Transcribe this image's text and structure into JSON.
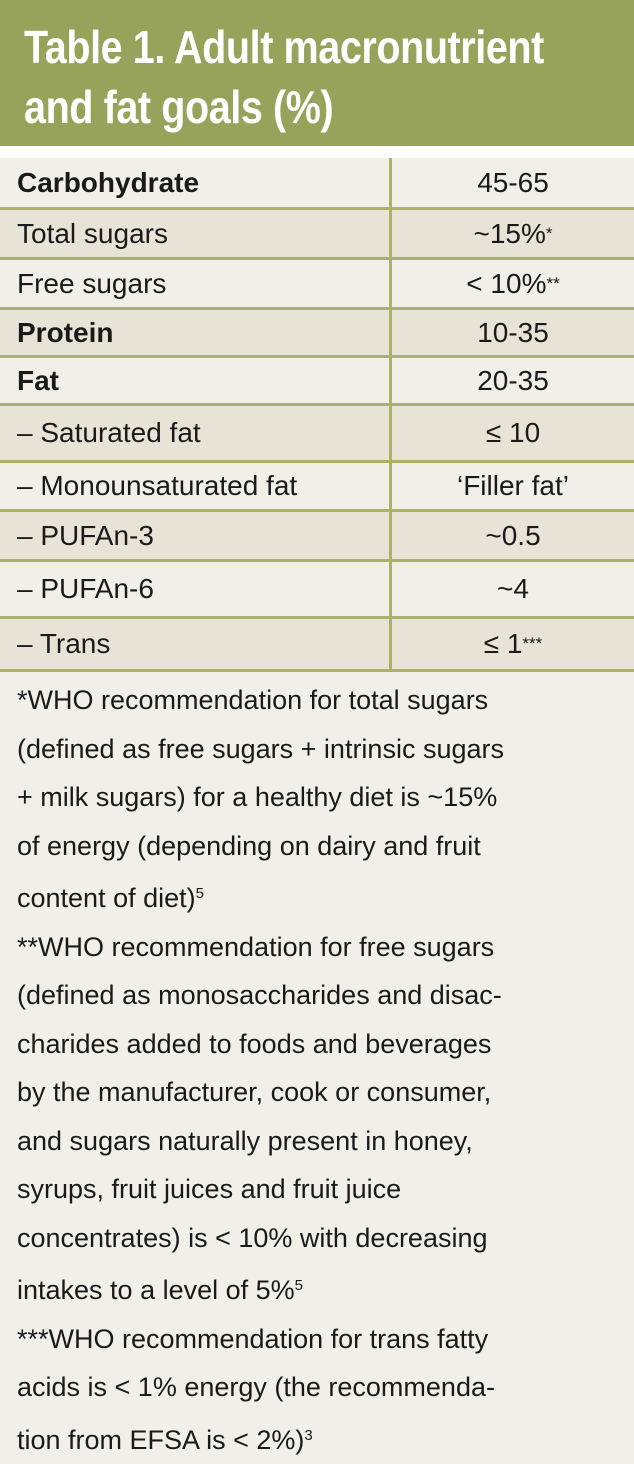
{
  "title": {
    "lines": [
      "Table 1. Adult macronutrient",
      "and fat goals (%)"
    ]
  },
  "colors": {
    "header": "#97a35b",
    "border": "#a8b26a",
    "row_light": "#f0efe8",
    "row_dark": "#e5e4d6"
  },
  "rows": [
    {
      "label": "Carbohydrate",
      "value": "45-65",
      "note": "",
      "bold": true
    },
    {
      "label": "Total sugars",
      "value": "~15%",
      "note": "*",
      "bold": false
    },
    {
      "label": "Free sugars",
      "value": "< 10%",
      "note": "**",
      "bold": false
    },
    {
      "label": "Protein",
      "value": "10-35",
      "note": "",
      "bold": true
    },
    {
      "label": "Fat",
      "value": "20-35",
      "note": "",
      "bold": true
    },
    {
      "label": "– Saturated fat",
      "value": "≤ 10",
      "note": "",
      "bold": false
    },
    {
      "label": "– Monounsaturated fat",
      "value": "‘Filler fat’",
      "note": "",
      "bold": false
    },
    {
      "label": "– PUFAn-3",
      "value": "~0.5",
      "note": "",
      "bold": false
    },
    {
      "label": "– PUFAn-6",
      "value": "~4",
      "note": "",
      "bold": false
    },
    {
      "label": "– Trans",
      "value": "≤ 1",
      "note": "***",
      "bold": false
    }
  ],
  "footnotes": [
    {
      "lines": [
        "*WHO recommendation for total sugars",
        "(defined as free sugars + intrinsic sugars",
        "+ milk sugars) for a healthy diet is ~15%",
        "of energy (depending on dairy and fruit",
        "content of diet)"
      ],
      "ref": "5"
    },
    {
      "lines": [
        "**WHO recommendation for free sugars",
        "(defined as monosaccharides and disac-",
        "charides added to foods and beverages",
        "by the manufacturer, cook or consumer,",
        "and sugars naturally present in honey,",
        "syrups, fruit juices and fruit juice",
        "concentrates) is < 10% with decreasing",
        "intakes to a level of 5%"
      ],
      "ref": "5"
    },
    {
      "lines": [
        "***WHO recommendation for trans fatty",
        "acids is < 1% energy (the recommenda-",
        "tion from EFSA is < 2%)"
      ],
      "ref": "3"
    }
  ]
}
